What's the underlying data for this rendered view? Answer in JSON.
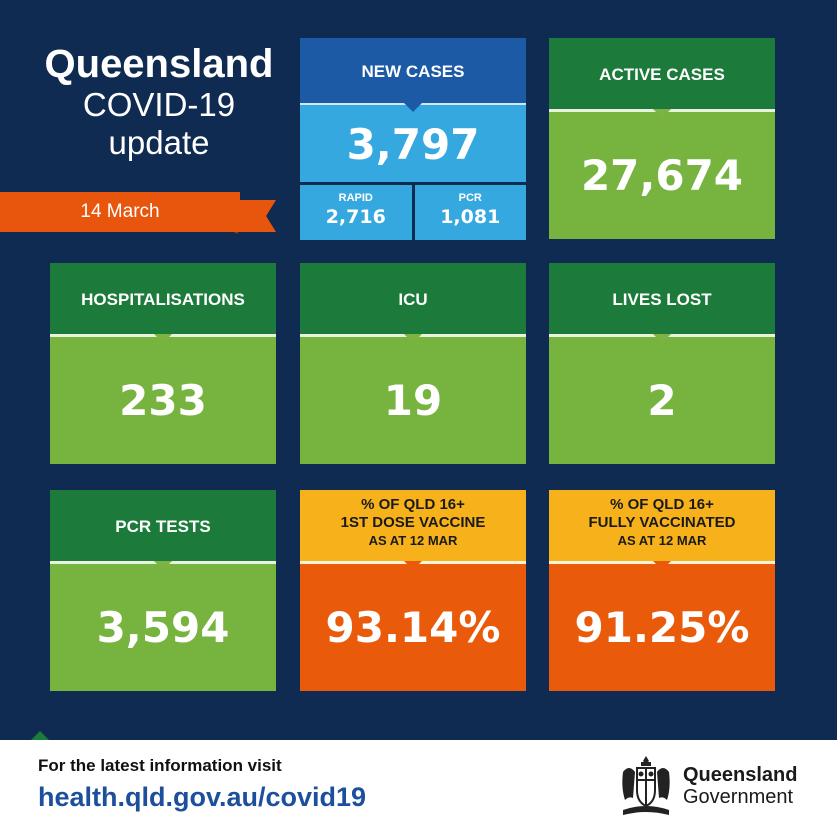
{
  "title": {
    "line1": "Queensland",
    "line2": "COVID-19",
    "line3": "update"
  },
  "date": "14 March",
  "new_cases": {
    "label": "NEW CASES",
    "value": "3,797",
    "rapid_label": "RAPID",
    "rapid_value": "2,716",
    "pcr_label": "PCR",
    "pcr_value": "1,081"
  },
  "active_cases": {
    "label": "ACTIVE CASES",
    "value": "27,674"
  },
  "hospitalisations": {
    "label": "HOSPITALISATIONS",
    "value": "233"
  },
  "icu": {
    "label": "ICU",
    "value": "19"
  },
  "lives_lost": {
    "label": "LIVES LOST",
    "value": "2"
  },
  "pcr_tests": {
    "label": "PCR TESTS",
    "value": "3,594"
  },
  "first_dose": {
    "line1": "% OF QLD 16+",
    "line2": "1ST DOSE VACCINE",
    "line3": "AS AT 12 MAR",
    "value": "93.14%"
  },
  "fully_vaccinated": {
    "line1": "% OF QLD 16+",
    "line2": "FULLY VACCINATED",
    "line3": "AS AT 12 MAR",
    "value": "91.25%"
  },
  "footer": {
    "visit_text": "For the latest information visit",
    "url": "health.qld.gov.au/covid19",
    "gov_line1": "Queensland",
    "gov_line2": "Government"
  },
  "colors": {
    "background": "#102b52",
    "tile_green_header": "#1c7a3b",
    "tile_green_body": "#76b33f",
    "tile_blue_header": "#1c5aa6",
    "tile_blue_body": "#35a8e0",
    "tile_yellow_header": "#f7b21b",
    "tile_orange_body": "#ea5a0b",
    "ribbon": "#e8560d",
    "url": "#1c4f9c"
  },
  "icons": {
    "crest": "queensland-crest-icon"
  }
}
